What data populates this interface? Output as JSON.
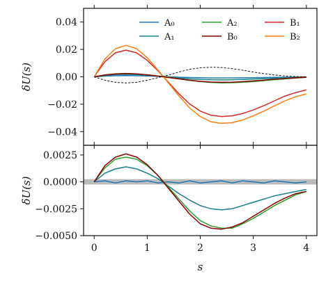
{
  "chart_data": [
    {
      "type": "line",
      "title": "",
      "xlabel": "",
      "ylabel": "δU(s)",
      "xlim": [
        -0.2,
        4.2
      ],
      "ylim": [
        -0.05,
        0.05
      ],
      "xticks": [
        0,
        1,
        2,
        3,
        4
      ],
      "xtick_labels": [
        "",
        "",
        "",
        "",
        ""
      ],
      "yticks": [
        -0.04,
        -0.02,
        0.0,
        0.02,
        0.04
      ],
      "ytick_labels": [
        "−0.04",
        "−0.02",
        "0.00",
        "0.02",
        "0.04"
      ],
      "legend": {
        "placement": "top-right",
        "columns": 3
      },
      "x": [
        0,
        0.2,
        0.4,
        0.6,
        0.8,
        1.0,
        1.2,
        1.4,
        1.6,
        1.8,
        2.0,
        2.2,
        2.4,
        2.6,
        2.8,
        3.0,
        3.2,
        3.4,
        3.6,
        3.8,
        4.0
      ],
      "series": [
        {
          "name": "A₀",
          "color": "#1f77b4",
          "style": "solid",
          "values": [
            0,
            0.0005,
            0.0008,
            0.0009,
            0.0008,
            0.0006,
            0.0003,
            0.0,
            -0.0003,
            -0.0005,
            -0.0007,
            -0.0008,
            -0.0008,
            -0.0008,
            -0.0007,
            -0.0006,
            -0.0005,
            -0.0004,
            -0.0003,
            -0.0002,
            -0.0001
          ]
        },
        {
          "name": "A₁",
          "color": "#17808a",
          "style": "solid",
          "values": [
            0,
            0.001,
            0.0016,
            0.0018,
            0.0016,
            0.0011,
            0.0005,
            -0.0002,
            -0.0009,
            -0.0015,
            -0.0019,
            -0.0022,
            -0.0023,
            -0.0022,
            -0.0019,
            -0.0016,
            -0.0013,
            -0.001,
            -0.0007,
            -0.0004,
            -0.0002
          ]
        },
        {
          "name": "A₂",
          "color": "#2ca02c",
          "style": "solid",
          "values": [
            0,
            0.0014,
            0.0022,
            0.0025,
            0.0022,
            0.0015,
            0.0006,
            -0.0004,
            -0.0015,
            -0.0026,
            -0.0035,
            -0.0041,
            -0.0044,
            -0.0043,
            -0.004,
            -0.0035,
            -0.0028,
            -0.0021,
            -0.0015,
            -0.0009,
            -0.0004
          ]
        },
        {
          "name": "B₀",
          "color": "#8b0000",
          "style": "solid",
          "values": [
            0,
            0.0013,
            0.0021,
            0.0024,
            0.0021,
            0.0014,
            0.0005,
            -0.0005,
            -0.0015,
            -0.0025,
            -0.0033,
            -0.0038,
            -0.004,
            -0.0039,
            -0.0035,
            -0.003,
            -0.0024,
            -0.0018,
            -0.0012,
            -0.0007,
            -0.0003
          ]
        },
        {
          "name": "B₁",
          "color": "#d62728",
          "style": "solid",
          "values": [
            0,
            0.011,
            0.0175,
            0.0195,
            0.0175,
            0.012,
            0.0045,
            -0.004,
            -0.0125,
            -0.0198,
            -0.025,
            -0.028,
            -0.029,
            -0.0285,
            -0.0268,
            -0.0242,
            -0.021,
            -0.0175,
            -0.014,
            -0.0115,
            -0.0095
          ]
        },
        {
          "name": "B₂",
          "color": "#ff7f0e",
          "style": "solid",
          "values": [
            0,
            0.013,
            0.0205,
            0.023,
            0.0205,
            0.014,
            0.005,
            -0.0045,
            -0.014,
            -0.0228,
            -0.029,
            -0.0328,
            -0.034,
            -0.0335,
            -0.0315,
            -0.0285,
            -0.025,
            -0.0212,
            -0.0175,
            -0.0145,
            -0.0125
          ]
        },
        {
          "name": "",
          "color": "#111111",
          "style": "dashed",
          "values": [
            0,
            -0.0025,
            -0.004,
            -0.0045,
            -0.004,
            -0.0025,
            -0.0006,
            0.0012,
            0.0035,
            0.0055,
            0.0066,
            0.007,
            0.0068,
            0.006,
            0.0048,
            0.0035,
            0.0023,
            0.0013,
            0.0006,
            0.0002,
            0.0
          ]
        }
      ]
    },
    {
      "type": "line",
      "title": "",
      "xlabel": "s",
      "ylabel": "δU(s)",
      "xlim": [
        -0.2,
        4.2
      ],
      "ylim": [
        -0.005,
        0.0034
      ],
      "xticks": [
        0,
        1,
        2,
        3,
        4
      ],
      "xtick_labels": [
        "0",
        "1",
        "2",
        "3",
        "4"
      ],
      "yticks": [
        -0.005,
        -0.0025,
        0.0,
        0.0025
      ],
      "ytick_labels": [
        "−0.0050",
        "−0.0025",
        "0.0000",
        "0.0025"
      ],
      "band": {
        "range": [
          -0.00025,
          0.00025
        ],
        "color": "#bbbbbb"
      },
      "x": [
        0,
        0.2,
        0.4,
        0.6,
        0.8,
        1.0,
        1.2,
        1.4,
        1.6,
        1.8,
        2.0,
        2.2,
        2.4,
        2.6,
        2.8,
        3.0,
        3.2,
        3.4,
        3.6,
        3.8,
        4.0
      ],
      "series": [
        {
          "name": "",
          "color": "#1f77b4",
          "values": [
            0,
            0.0001,
            -0.0001,
            0.0001,
            0.0,
            0.0001,
            -0.0001,
            0.0,
            -0.0001,
            0.0001,
            -0.0001,
            0.0,
            0.0001,
            -0.0001,
            0.0001,
            0.0,
            -0.0001,
            0.0001,
            0.0,
            -0.0001,
            0.0
          ]
        },
        {
          "name": "",
          "color": "#17808a",
          "values": [
            0,
            0.0008,
            0.0012,
            0.0014,
            0.0012,
            0.0008,
            0.0003,
            -0.0004,
            -0.0011,
            -0.0017,
            -0.0022,
            -0.0025,
            -0.0026,
            -0.0025,
            -0.0022,
            -0.0019,
            -0.0016,
            -0.0013,
            -0.0011,
            -0.0009,
            -0.0007
          ]
        },
        {
          "name": "",
          "color": "#2ca02c",
          "values": [
            0,
            0.0013,
            0.0021,
            0.0023,
            0.0021,
            0.0015,
            0.0006,
            -0.0005,
            -0.0016,
            -0.0027,
            -0.0036,
            -0.0041,
            -0.0043,
            -0.0043,
            -0.0039,
            -0.0034,
            -0.0028,
            -0.0022,
            -0.0017,
            -0.0012,
            -0.0009
          ]
        },
        {
          "name": "",
          "color": "#8b0000",
          "values": [
            0,
            0.0015,
            0.0023,
            0.0026,
            0.0023,
            0.0016,
            0.0006,
            -0.0006,
            -0.0018,
            -0.003,
            -0.0039,
            -0.0043,
            -0.0044,
            -0.0042,
            -0.0038,
            -0.0032,
            -0.0026,
            -0.002,
            -0.0015,
            -0.0011,
            -0.0009
          ]
        }
      ]
    }
  ]
}
